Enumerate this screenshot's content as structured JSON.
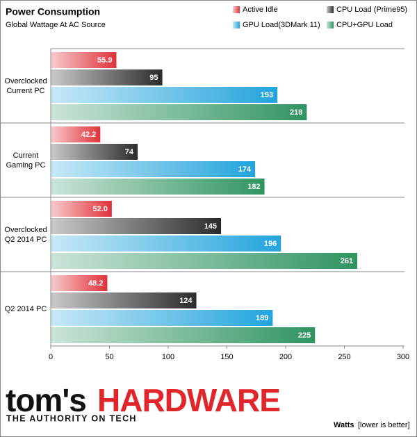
{
  "chart_data": {
    "type": "bar",
    "orientation": "horizontal",
    "title": "Power Consumption",
    "subtitle": "Global Wattage At AC Source",
    "categories": [
      "Overclocked Current PC",
      "Current Gaming PC",
      "Overclocked Q2 2014 PC",
      "Q2 2014 PC"
    ],
    "series": [
      {
        "name": "Active Idle",
        "color": "#e0323a",
        "values": [
          55.9,
          42.2,
          52.0,
          48.2
        ],
        "value_labels": [
          "55.9",
          "42.2",
          "52.0",
          "48.2"
        ]
      },
      {
        "name": "CPU Load (Prime95)",
        "color": "#2b2b2b",
        "values": [
          95,
          74,
          145,
          124
        ]
      },
      {
        "name": "GPU Load(3DMark 11)",
        "color": "#22a4dc",
        "values": [
          193,
          174,
          196,
          189
        ]
      },
      {
        "name": "CPU+GPU Load",
        "color": "#2f9462",
        "values": [
          218,
          182,
          261,
          225
        ]
      }
    ],
    "xlim": [
      0,
      300
    ],
    "xticks": [
      0,
      50,
      100,
      150,
      200,
      250,
      300
    ],
    "grid": false,
    "x_label": "Watts",
    "x_label_note": "[lower is better]"
  },
  "branding": {
    "logo_left": "tom's",
    "logo_right": "HARDWARE",
    "tagline": "THE AUTHORITY ON TECH"
  }
}
